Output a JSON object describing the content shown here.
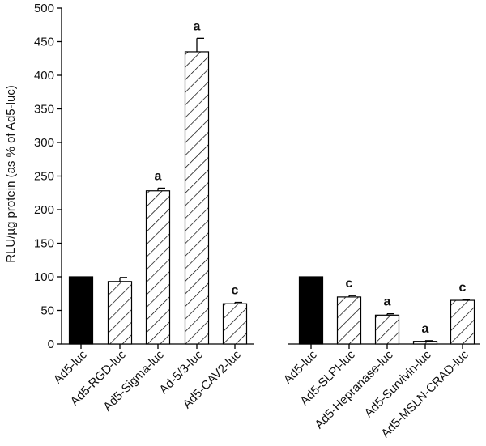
{
  "chart_data": {
    "type": "bar",
    "ylabel": "RLU/µg protein (as % of Ad5-luc)",
    "ylim": [
      0,
      500
    ],
    "yticks": [
      0,
      50,
      100,
      150,
      200,
      250,
      300,
      350,
      400,
      450,
      500
    ],
    "groups": [
      {
        "bars": [
          {
            "label": "Ad5-luc",
            "value": 100,
            "error": 0,
            "fill": "solid",
            "sig": ""
          },
          {
            "label": "Ad5-RGD-luc",
            "value": 93,
            "error": 6,
            "fill": "hatched",
            "sig": ""
          },
          {
            "label": "Ad5-Sigma-luc",
            "value": 228,
            "error": 4,
            "fill": "hatched",
            "sig": "a"
          },
          {
            "label": "Ad-5/3-luc",
            "value": 435,
            "error": 20,
            "fill": "hatched",
            "sig": "a"
          },
          {
            "label": "Ad5-CAV2-luc",
            "value": 60,
            "error": 2,
            "fill": "hatched",
            "sig": "c"
          }
        ]
      },
      {
        "bars": [
          {
            "label": "Ad5-luc",
            "value": 100,
            "error": 0,
            "fill": "solid",
            "sig": ""
          },
          {
            "label": "Ad5-SLPI-luc",
            "value": 70,
            "error": 2,
            "fill": "hatched",
            "sig": "c"
          },
          {
            "label": "Ad5-Hepranase-luc",
            "value": 43,
            "error": 2,
            "fill": "hatched",
            "sig": "a"
          },
          {
            "label": "Ad5-Survivin-luc",
            "value": 4,
            "error": 1,
            "fill": "hatched",
            "sig": "a"
          },
          {
            "label": "Ad5-MSLN-CRAD-luc",
            "value": 65,
            "error": 1,
            "fill": "hatched",
            "sig": "c"
          }
        ]
      }
    ],
    "colors": {
      "solid": "#000000",
      "stroke": "#000000"
    }
  }
}
